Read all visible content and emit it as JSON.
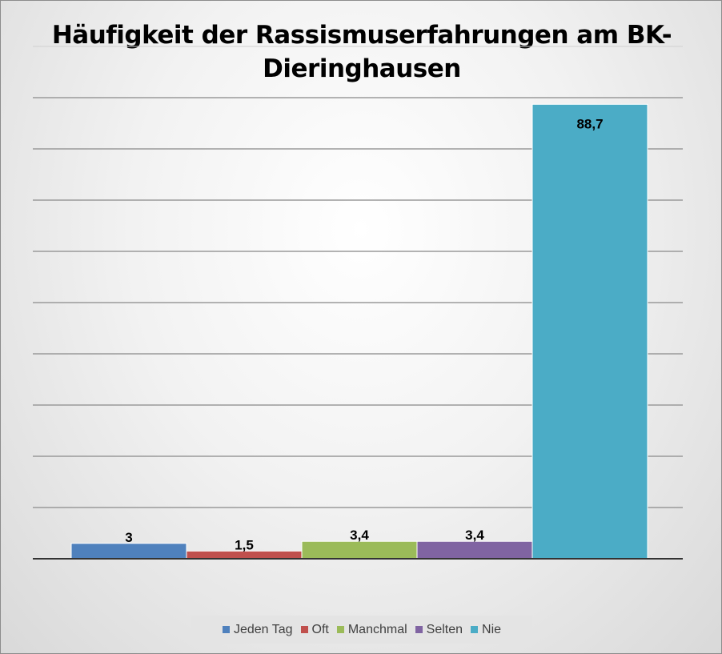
{
  "chart_data": {
    "type": "bar",
    "title": "Häufigkeit der Rassismuserfahrungen am BK-Dieringhausen",
    "categories": [
      "Jeden Tag",
      "Oft",
      "Manchmal",
      "Selten",
      "Nie"
    ],
    "values": [
      3,
      1.5,
      3.4,
      3.4,
      88.7
    ],
    "value_labels": [
      "3",
      "1,5",
      "3,4",
      "3,4",
      "88,7"
    ],
    "colors": [
      "#4f81bd",
      "#c0504d",
      "#9bbb59",
      "#8064a2",
      "#4bacc6"
    ],
    "ylim": [
      0,
      90
    ],
    "y_tick_step": 10,
    "y_tick_labels_visible": false,
    "grid": true,
    "legend": "bottom"
  }
}
